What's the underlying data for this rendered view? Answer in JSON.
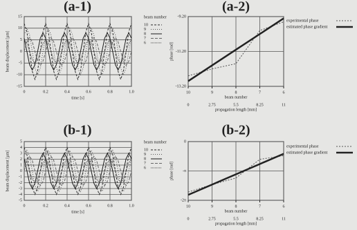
{
  "chart_data": [
    {
      "type": "line",
      "title": "(a-1)",
      "xlabel": "time [s]",
      "ylabel": "beam displacement [µm]",
      "legend_title": "beam number",
      "grid": true,
      "xlim": [
        0,
        1
      ],
      "xticks": [
        0,
        0.2,
        0.4,
        0.6,
        0.8,
        {
          "value": 1,
          "label": "1.0"
        }
      ],
      "ylim": [
        -15,
        15
      ],
      "yticks": [
        15,
        10,
        5,
        0,
        -5,
        -10,
        -15
      ],
      "x": [
        0,
        0.025,
        0.05,
        0.075,
        0.1,
        0.125,
        0.15,
        0.175,
        0.2,
        0.225,
        0.25,
        0.275,
        0.3,
        0.325,
        0.35,
        0.375,
        0.4,
        0.425,
        0.45,
        0.475,
        0.5,
        0.525,
        0.55,
        0.575,
        0.6,
        0.625,
        0.65,
        0.675,
        0.7,
        0.725,
        0.75,
        0.775,
        0.8,
        0.825,
        0.85,
        0.875,
        0.9,
        0.925,
        0.95,
        0.975,
        1
      ],
      "series": [
        {
          "name": "10",
          "color": "#2a2a2a",
          "dash": "3 2",
          "values": [
            12,
            8.5,
            0,
            -8.5,
            -12,
            -8.5,
            0,
            8.5,
            12,
            8.5,
            0,
            -8.5,
            -12,
            -8.5,
            0,
            8.5,
            12,
            8.5,
            0,
            -8.5,
            -12,
            -8.5,
            0,
            8.5,
            12,
            8.5,
            0,
            -8.5,
            -12,
            -8.5,
            0,
            8.5,
            12,
            8.5,
            0,
            -8.5,
            -12,
            -8.5,
            0,
            8.5,
            12
          ]
        },
        {
          "name": "9",
          "color": "#555555",
          "dash": "1 2",
          "values": [
            7.1,
            10,
            7.1,
            0,
            -7.1,
            -10,
            -7.1,
            0,
            7.1,
            10,
            7.1,
            0,
            -7.1,
            -10,
            -7.1,
            0,
            7.1,
            10,
            7.1,
            0,
            -7.1,
            -10,
            -7.1,
            0,
            7.1,
            10,
            7.1,
            0,
            -7.1,
            -10,
            -7.1,
            0,
            7.1,
            10,
            7.1,
            0,
            -7.1,
            -10,
            -7.1,
            0,
            7.1
          ]
        },
        {
          "name": "8",
          "color": "#1a1a1a",
          "dash": "none",
          "values": [
            5.7,
            0,
            -5.7,
            -8,
            -5.7,
            0,
            5.7,
            8,
            5.7,
            0,
            -5.7,
            -8,
            -5.7,
            0,
            5.7,
            8,
            5.7,
            0,
            -5.7,
            -8,
            -5.7,
            0,
            5.7,
            8,
            5.7,
            0,
            -5.7,
            -8,
            -5.7,
            0,
            5.7,
            8,
            5.7,
            0,
            -5.7,
            -8,
            -5.7,
            0,
            5.7,
            8,
            5.7
          ]
        },
        {
          "name": "7",
          "color": "#666666",
          "dash": "4 2",
          "values": [
            0,
            4.2,
            6,
            4.2,
            0,
            -4.2,
            -6,
            -4.2,
            0,
            4.2,
            6,
            4.2,
            0,
            -4.2,
            -6,
            -4.2,
            0,
            4.2,
            6,
            4.2,
            0,
            -4.2,
            -6,
            -4.2,
            0,
            4.2,
            6,
            4.2,
            0,
            -4.2,
            -6,
            -4.2,
            0,
            4.2,
            6,
            4.2,
            0,
            -4.2,
            -6,
            -4.2,
            0
          ]
        },
        {
          "name": "6",
          "color": "#444444",
          "dash": "1 1",
          "values": [
            5,
            3.5,
            0,
            -3.5,
            -5,
            -3.5,
            0,
            3.5,
            5,
            3.5,
            0,
            -3.5,
            -5,
            -3.5,
            0,
            3.5,
            5,
            3.5,
            0,
            -3.5,
            -5,
            -3.5,
            0,
            3.5,
            5,
            3.5,
            0,
            -3.5,
            -5,
            -3.5,
            0,
            3.5,
            5,
            3.5,
            0,
            -3.5,
            -5,
            -3.5,
            0,
            3.5,
            5
          ]
        }
      ]
    },
    {
      "type": "line",
      "title": "(a-2)",
      "xlabel": "propagation length [mm]",
      "ylabel": "phase [rad]",
      "x2label": "beam number",
      "grid": true,
      "xlim": [
        0,
        11
      ],
      "xticks": [
        0,
        2.75,
        5.5,
        8.25,
        11
      ],
      "x2lim": [
        10,
        6
      ],
      "x2ticks": [
        10,
        9,
        8,
        7,
        6
      ],
      "ylim": [
        -13.2,
        -9.2
      ],
      "yticks": [
        {
          "value": -9.2,
          "label": "-9.20"
        },
        {
          "value": -11.2,
          "label": "-11.20"
        },
        {
          "value": -13.2,
          "label": "-13.20"
        }
      ],
      "x": [
        0,
        2.75,
        5.5,
        8.25,
        11
      ],
      "series": [
        {
          "name": "experimental phase",
          "color": "#555555",
          "dash": "2 2",
          "width": 1,
          "values": [
            -12.6,
            -12.2,
            -11.9,
            -10.0,
            -9.5
          ]
        },
        {
          "name": "estimated phase gradient",
          "color": "#222222",
          "dash": "none",
          "width": 2.5,
          "values": [
            -12.9,
            -12.0,
            -11.1,
            -10.2,
            -9.3
          ]
        }
      ]
    },
    {
      "type": "line",
      "title": "(b-1)",
      "xlabel": "time [s]",
      "ylabel": "beam displacement [µm]",
      "legend_title": "beam number",
      "grid": true,
      "xlim": [
        0,
        1
      ],
      "xticks": [
        0,
        0.2,
        0.4,
        0.6,
        0.8,
        {
          "value": 1,
          "label": "1.0"
        }
      ],
      "ylim": [
        -5,
        5
      ],
      "yticks": [
        5,
        4,
        3,
        2,
        1,
        0,
        -1,
        -2,
        -3,
        -4,
        -5
      ],
      "x": [
        0,
        0.025,
        0.05,
        0.075,
        0.1,
        0.125,
        0.15,
        0.175,
        0.2,
        0.225,
        0.25,
        0.275,
        0.3,
        0.325,
        0.35,
        0.375,
        0.4,
        0.425,
        0.45,
        0.475,
        0.5,
        0.525,
        0.55,
        0.575,
        0.6,
        0.625,
        0.65,
        0.675,
        0.7,
        0.725,
        0.75,
        0.775,
        0.8,
        0.825,
        0.85,
        0.875,
        0.9,
        0.925,
        0.95,
        0.975,
        1
      ],
      "series": [
        {
          "name": "10",
          "color": "#2a2a2a",
          "dash": "3 2",
          "values": [
            4,
            2.8,
            0,
            -2.8,
            -4,
            -2.8,
            0,
            2.8,
            4,
            2.8,
            0,
            -2.8,
            -4,
            -2.8,
            0,
            2.8,
            4,
            2.8,
            0,
            -2.8,
            -4,
            -2.8,
            0,
            2.8,
            4,
            2.8,
            0,
            -2.8,
            -4,
            -2.8,
            0,
            2.8,
            4,
            2.8,
            0,
            -2.8,
            -4,
            -2.8,
            0,
            2.8,
            4
          ]
        },
        {
          "name": "9",
          "color": "#555555",
          "dash": "1 2",
          "values": [
            2.5,
            3.5,
            2.5,
            0,
            -2.5,
            -3.5,
            -2.5,
            0,
            2.5,
            3.5,
            2.5,
            0,
            -2.5,
            -3.5,
            -2.5,
            0,
            2.5,
            3.5,
            2.5,
            0,
            -2.5,
            -3.5,
            -2.5,
            0,
            2.5,
            3.5,
            2.5,
            0,
            -2.5,
            -3.5,
            -2.5,
            0,
            2.5,
            3.5,
            2.5,
            0,
            -2.5,
            -3.5,
            -2.5,
            0,
            2.5
          ]
        },
        {
          "name": "8",
          "color": "#1a1a1a",
          "dash": "none",
          "values": [
            2.1,
            0,
            -2.1,
            -3,
            -2.1,
            0,
            2.1,
            3,
            2.1,
            0,
            -2.1,
            -3,
            -2.1,
            0,
            2.1,
            3,
            2.1,
            0,
            -2.1,
            -3,
            -2.1,
            0,
            2.1,
            3,
            2.1,
            0,
            -2.1,
            -3,
            -2.1,
            0,
            2.1,
            3,
            2.1,
            0,
            -2.1,
            -3,
            -2.1,
            0,
            2.1,
            3,
            2.1
          ]
        },
        {
          "name": "7",
          "color": "#666666",
          "dash": "4 2",
          "values": [
            0,
            1.8,
            2.5,
            1.8,
            0,
            -1.8,
            -2.5,
            -1.8,
            0,
            1.8,
            2.5,
            1.8,
            0,
            -1.8,
            -2.5,
            -1.8,
            0,
            1.8,
            2.5,
            1.8,
            0,
            -1.8,
            -2.5,
            -1.8,
            0,
            1.8,
            2.5,
            1.8,
            0,
            -1.8,
            -2.5,
            -1.8,
            0,
            1.8,
            2.5,
            1.8,
            0,
            -1.8,
            -2.5,
            -1.8,
            0
          ]
        },
        {
          "name": "6",
          "color": "#444444",
          "dash": "1 1",
          "values": [
            2,
            1.4,
            0,
            -1.4,
            -2,
            -1.4,
            0,
            1.4,
            2,
            1.4,
            0,
            -1.4,
            -2,
            -1.4,
            0,
            1.4,
            2,
            1.4,
            0,
            -1.4,
            -2,
            -1.4,
            0,
            1.4,
            2,
            1.4,
            0,
            -1.4,
            -2,
            -1.4,
            0,
            1.4,
            2,
            1.4,
            0,
            -1.4,
            -2,
            -1.4,
            0,
            1.4,
            2
          ]
        }
      ]
    },
    {
      "type": "line",
      "title": "(b-2)",
      "xlabel": "propagation length [mm]",
      "ylabel": "phase [rad]",
      "x2label": "beam number",
      "grid": true,
      "xlim": [
        0,
        11
      ],
      "xticks": [
        0,
        2.75,
        5.5,
        8.25,
        11
      ],
      "x2lim": [
        10,
        6
      ],
      "x2ticks": [
        10,
        9,
        8,
        7,
        6
      ],
      "ylim": [
        -6.2832,
        0
      ],
      "yticks": [
        0,
        {
          "value": -3.1416,
          "label": "-π"
        },
        {
          "value": -6.2832,
          "label": "-2π"
        }
      ],
      "x": [
        0,
        2.75,
        5.5,
        8.25,
        11
      ],
      "series": [
        {
          "name": "experimental phase",
          "color": "#555555",
          "dash": "2 2",
          "width": 1,
          "values": [
            -5.4,
            -4.6,
            -3.9,
            -1.9,
            -1.5
          ]
        },
        {
          "name": "estimated phase gradient",
          "color": "#222222",
          "dash": "none",
          "width": 2.5,
          "values": [
            -5.7,
            -4.6,
            -3.5,
            -2.4,
            -1.3
          ]
        }
      ]
    }
  ]
}
